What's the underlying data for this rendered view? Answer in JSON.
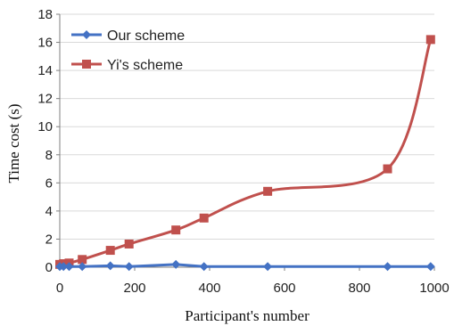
{
  "chart_data": {
    "type": "line",
    "title": "",
    "xlabel": "Participant's number",
    "ylabel": "Time cost (s)",
    "xlim": [
      0,
      1000
    ],
    "ylim": [
      0,
      18
    ],
    "x_ticks": [
      0,
      200,
      400,
      600,
      800,
      1000
    ],
    "y_ticks": [
      0,
      2,
      4,
      6,
      8,
      10,
      12,
      14,
      16,
      18
    ],
    "grid": "horizontal",
    "legend_position": "top-left",
    "series": [
      {
        "name": "Our scheme",
        "color": "#4472c4",
        "marker": "diamond",
        "smooth": false,
        "x": [
          0,
          10,
          25,
          60,
          135,
          185,
          310,
          385,
          555,
          875,
          990
        ],
        "y": [
          0.05,
          0.05,
          0.05,
          0.05,
          0.1,
          0.05,
          0.2,
          0.05,
          0.05,
          0.05,
          0.05
        ]
      },
      {
        "name": "Yi's scheme",
        "color": "#c0504d",
        "marker": "square",
        "smooth": true,
        "x": [
          0,
          10,
          25,
          60,
          135,
          185,
          310,
          385,
          555,
          875,
          990
        ],
        "y": [
          0.2,
          0.25,
          0.3,
          0.55,
          1.2,
          1.65,
          2.65,
          3.5,
          5.4,
          7.0,
          16.2
        ]
      }
    ]
  }
}
